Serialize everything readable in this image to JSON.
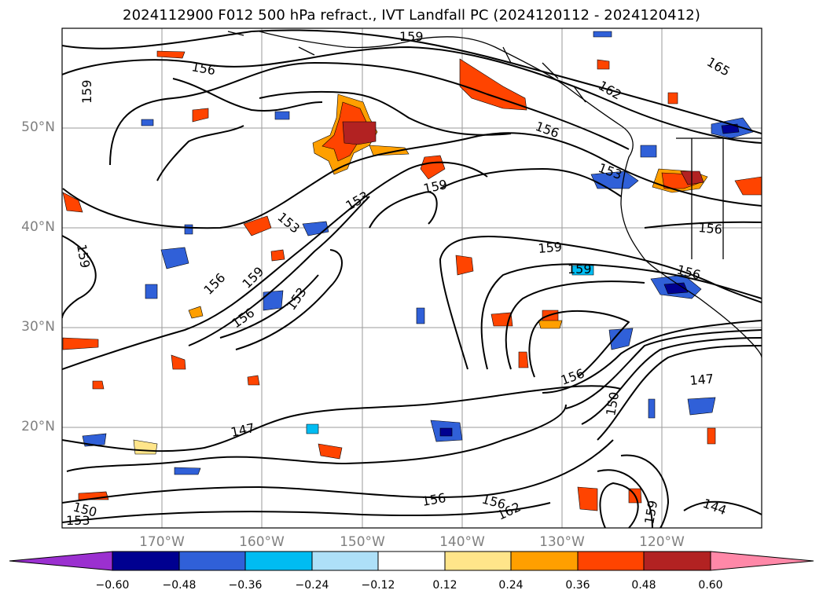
{
  "title": "2024112900 F012 500 hPa refract., IVT Landfall PC (2024120112 - 2024120412)",
  "lat_labels": [
    "50°N",
    "40°N",
    "30°N",
    "20°N"
  ],
  "lon_labels": [
    "170°W",
    "160°W",
    "150°W",
    "140°W",
    "130°W",
    "120°W"
  ],
  "contour_labels": [
    "159",
    "156",
    "165",
    "162",
    "159",
    "156",
    "153",
    "159",
    "153",
    "153",
    "156",
    "159",
    "156",
    "159",
    "159",
    "156",
    "159",
    "153",
    "156",
    "147",
    "147",
    "150",
    "156",
    "150",
    "153",
    "156",
    "156",
    "162",
    "159",
    "144"
  ],
  "colorbar": {
    "ticks": [
      "−0.60",
      "−0.48",
      "−0.36",
      "−0.24",
      "−0.12",
      "0.12",
      "0.24",
      "0.36",
      "0.48",
      "0.60"
    ],
    "colors": [
      "#9b30d0",
      "#000090",
      "#3060d8",
      "#00bcf2",
      "#aee0f8",
      "#ffffff",
      "#ffe58a",
      "#ff9f00",
      "#ff4400",
      "#b22222",
      "#ff88a8"
    ]
  }
}
